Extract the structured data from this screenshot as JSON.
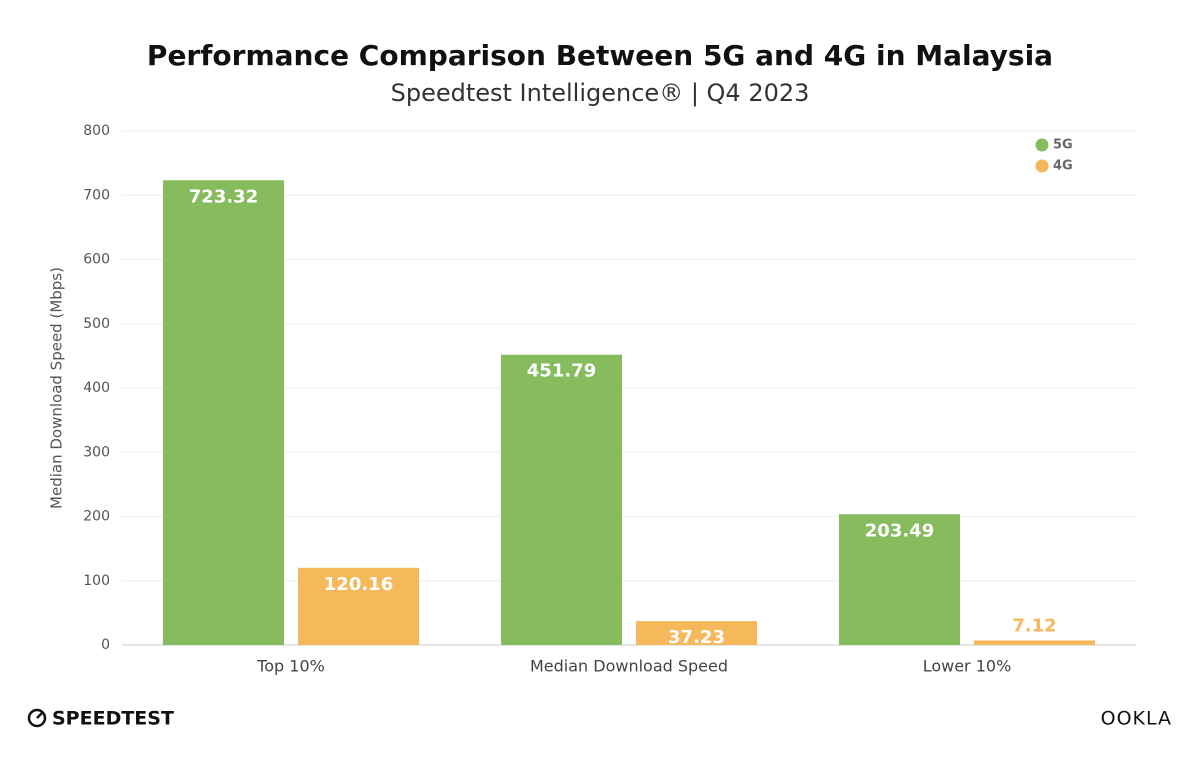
{
  "chart_data": {
    "type": "bar",
    "title": "Performance Comparison Between 5G and 4G in Malaysia",
    "subtitle": "Speedtest Intelligence® | Q4 2023",
    "y_label": "Median Download Speed (Mbps)",
    "categories": [
      "Top 10%",
      "Median Download Speed",
      "Lower 10%"
    ],
    "series": [
      {
        "name": "5G",
        "color": "#86bb5e",
        "values": [
          723.32,
          451.79,
          203.49
        ]
      },
      {
        "name": "4G",
        "color": "#f5b95c",
        "values": [
          120.16,
          37.23,
          7.12
        ]
      }
    ],
    "ylim": [
      0,
      800
    ],
    "yticks": [
      0,
      100,
      200,
      300,
      400,
      500,
      600,
      700,
      800
    ],
    "grid": true,
    "legend": "top-right"
  },
  "footer": {
    "left_logo": "SPEEDTEST",
    "right_logo": "OOKLA"
  }
}
